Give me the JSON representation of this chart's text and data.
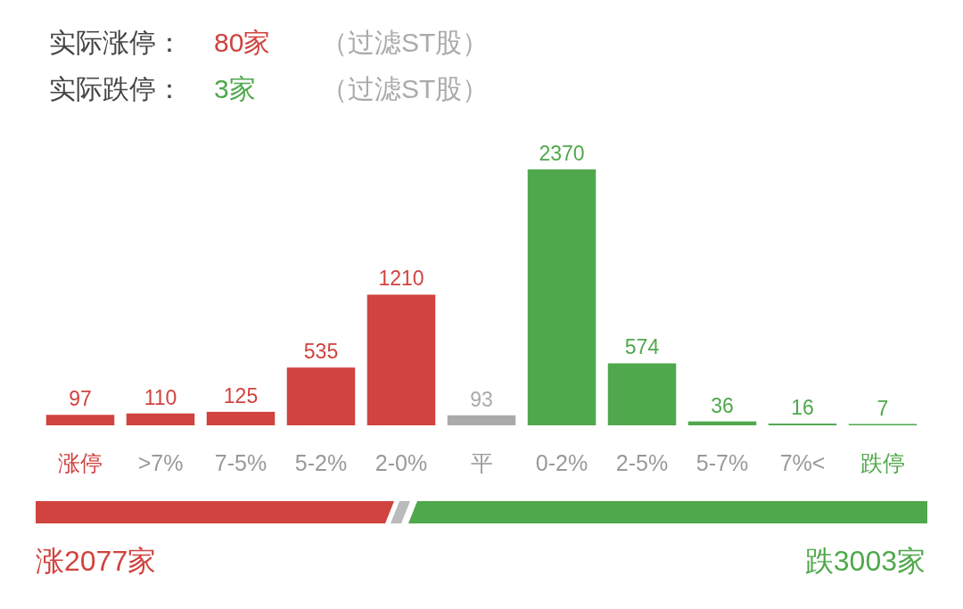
{
  "chart_data": {
    "type": "bar",
    "categories": [
      "涨停",
      ">7%",
      "7-5%",
      "5-2%",
      "2-0%",
      "平",
      "0-2%",
      "2-5%",
      "5-7%",
      "7%<",
      "跌停"
    ],
    "values": [
      97,
      110,
      125,
      535,
      1210,
      93,
      2370,
      574,
      36,
      16,
      7
    ],
    "colors": [
      "#d0433f",
      "#d0433f",
      "#d0433f",
      "#d0433f",
      "#d0433f",
      "#aaaaaa",
      "#4fa84b",
      "#4fa84b",
      "#4fa84b",
      "#4fa84b",
      "#4fa84b"
    ],
    "data_labels": true,
    "annotations": [
      "实际涨停：",
      "80家",
      "（过滤ST股）",
      "实际跌停：",
      "3家",
      "（过滤ST股）",
      "涨2077家",
      "跌3003家"
    ]
  }
}
